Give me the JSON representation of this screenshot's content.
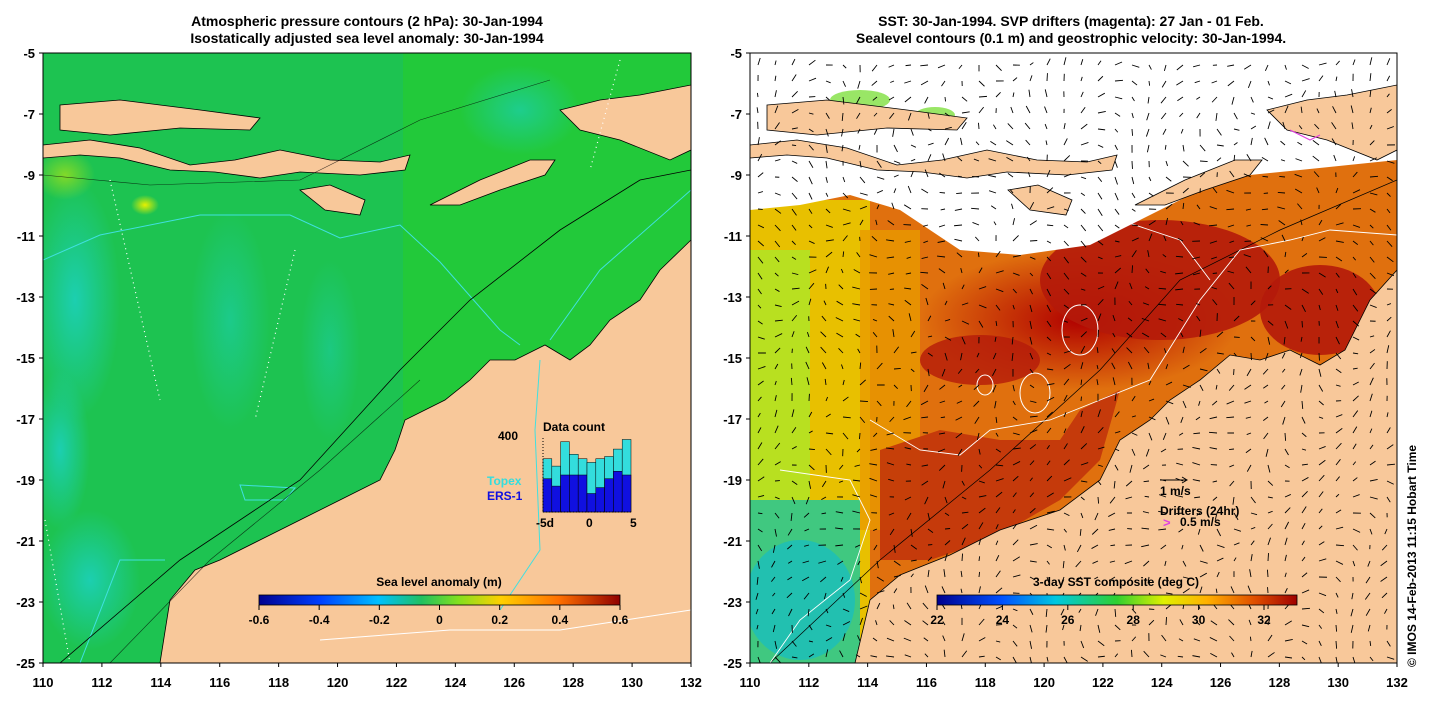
{
  "left_panel": {
    "title_line1": "Atmospheric pressure contours (2 hPa): 30-Jan-1994",
    "title_line2": "Isostatically adjusted sea level anomaly: 30-Jan-1994",
    "colorbar_label": "Sea level anomaly (m)",
    "colorbar_ticks": [
      "-0.6",
      "-0.4",
      "-0.2",
      "0",
      "0.2",
      "0.4",
      "0.6"
    ],
    "inset": {
      "title": "Data count",
      "ymax_label": "400",
      "series": [
        {
          "name": "Topex",
          "color": "#33dddd"
        },
        {
          "name": "ERS-1",
          "color": "#1010e0"
        }
      ],
      "xticks": [
        "-5d",
        "0",
        "5"
      ]
    }
  },
  "right_panel": {
    "title_line1": "SST: 30-Jan-1994. SVP drifters (magenta): 27 Jan - 01 Feb.",
    "title_line2": "Sealevel contours (0.1 m) and geostrophic velocity: 30-Jan-1994.",
    "colorbar_label": "3-day SST composite (deg C)",
    "colorbar_ticks": [
      "22",
      "24",
      "26",
      "28",
      "30",
      "32"
    ],
    "velocity_scale_label": "1 m/s",
    "drifters_label": "Drifters (24hr)",
    "drifter_scale_label": "0.5 m/s"
  },
  "axes": {
    "lon_ticks": [
      "110",
      "112",
      "114",
      "116",
      "118",
      "120",
      "122",
      "124",
      "126",
      "128",
      "130",
      "132"
    ],
    "lat_ticks": [
      "-5",
      "-7",
      "-9",
      "-11",
      "-13",
      "-15",
      "-17",
      "-19",
      "-21",
      "-23",
      "-25"
    ]
  },
  "credit": "© IMOS 14-Feb-2013 11:15 Hobart Time",
  "colors": {
    "land": "#f8c89a",
    "ocean_green": "#22c93a",
    "sst_red": "#b41a0a",
    "sst_orange": "#e0700e"
  }
}
